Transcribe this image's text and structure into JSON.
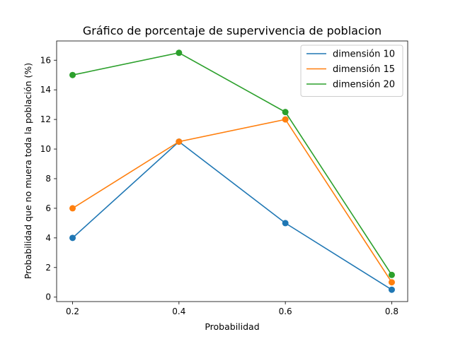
{
  "chart_data": {
    "type": "line",
    "title": "Gráfico de porcentaje de supervivencia de poblacion",
    "xlabel": "Probabilidad",
    "ylabel": "Probabilidad que no muera toda la población (%)",
    "x": [
      0.2,
      0.4,
      0.6,
      0.8
    ],
    "xticks": [
      "0.2",
      "0.4",
      "0.6",
      "0.8"
    ],
    "yticks": [
      "0",
      "2",
      "4",
      "6",
      "8",
      "10",
      "12",
      "14",
      "16"
    ],
    "xlim": [
      0.17,
      0.83
    ],
    "ylim": [
      -0.3,
      17.3
    ],
    "legend_position": "top-right",
    "grid": false,
    "series": [
      {
        "name": "dimensión 10",
        "color": "#1f77b4",
        "values": [
          4.0,
          10.5,
          5.0,
          0.5
        ]
      },
      {
        "name": "dimensión 15",
        "color": "#ff7f0e",
        "values": [
          6.0,
          10.5,
          12.0,
          1.0
        ]
      },
      {
        "name": "dimensión 20",
        "color": "#2ca02c",
        "values": [
          15.0,
          16.5,
          12.5,
          1.5
        ]
      }
    ]
  }
}
